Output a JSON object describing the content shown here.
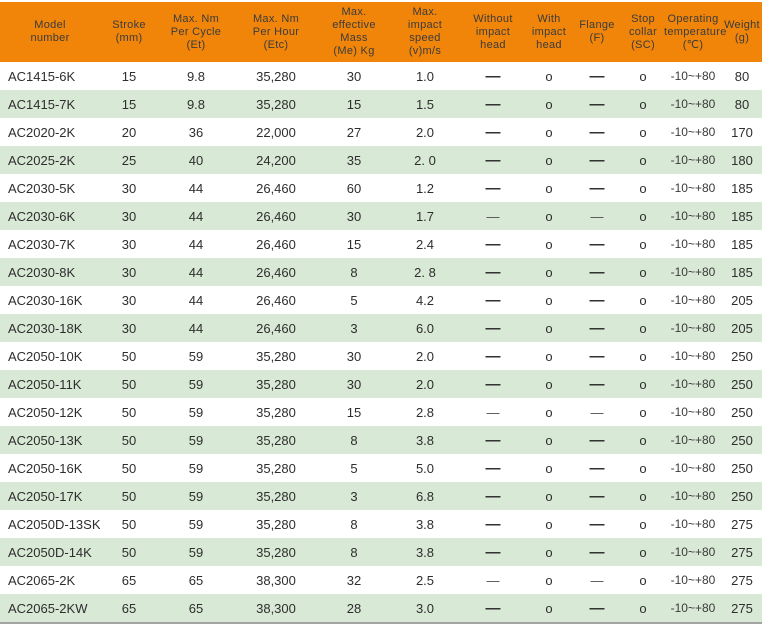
{
  "colors": {
    "header_bg": "#f0850a",
    "header_text": "#3b3b3b",
    "row_bg": "#ffffff",
    "row_alt_bg": "#d8e9d5",
    "cell_text": "#2e2e2e",
    "bottom_rule": "#a3a3a3"
  },
  "table": {
    "columns": [
      {
        "id": "model_number",
        "label": "Model\nnumber"
      },
      {
        "id": "stroke_mm",
        "label": "Stroke\n(mm)"
      },
      {
        "id": "max_nm_per_cycle",
        "label": "Max. Nm\nPer Cycle\n(Et)"
      },
      {
        "id": "max_nm_per_hour",
        "label": "Max. Nm\nPer Hour\n(Etc)"
      },
      {
        "id": "max_effective_mass",
        "label": "Max.\neffective\nMass\n(Me) Kg"
      },
      {
        "id": "max_impact_speed",
        "label": "Max.\nimpact\nspeed\n(v)m/s"
      },
      {
        "id": "without_impact_head",
        "label": "Without\nimpact\nhead"
      },
      {
        "id": "with_impact_head",
        "label": "With\nimpact\nhead"
      },
      {
        "id": "flange",
        "label": "Flange\n(F)"
      },
      {
        "id": "stop_collar",
        "label": "Stop\ncollar\n(SC)"
      },
      {
        "id": "operating_temperature",
        "label": "Operating\ntemperature\n(℃)"
      },
      {
        "id": "weight",
        "label": "Weight\n(g)"
      }
    ],
    "symbol_legend": {
      "dash": "—",
      "circle": "o"
    },
    "light_dash_row_indices": [
      5,
      12,
      18
    ]
  },
  "chart_data": {
    "type": "table",
    "title": "",
    "columns": [
      "Model number",
      "Stroke (mm)",
      "Max. Nm Per Cycle (Et)",
      "Max. Nm Per Hour (Etc)",
      "Max. effective Mass (Me) Kg",
      "Max. impact speed (v)m/s",
      "Without impact head",
      "With impact head",
      "Flange (F)",
      "Stop collar (SC)",
      "Operating temperature (℃)",
      "Weight (g)"
    ],
    "rows": [
      [
        "AC1415-6K",
        "15",
        "9.8",
        "35,280",
        "30",
        "1.0",
        "—",
        "o",
        "—",
        "o",
        "-10~+80",
        "80"
      ],
      [
        "AC1415-7K",
        "15",
        "9.8",
        "35,280",
        "15",
        "1.5",
        "—",
        "o",
        "—",
        "o",
        "-10~+80",
        "80"
      ],
      [
        "AC2020-2K",
        "20",
        "36",
        "22,000",
        "27",
        "2.0",
        "—",
        "o",
        "—",
        "o",
        "-10~+80",
        "170"
      ],
      [
        "AC2025-2K",
        "25",
        "40",
        "24,200",
        "35",
        "2. 0",
        "—",
        "o",
        "—",
        "o",
        "-10~+80",
        "180"
      ],
      [
        "AC2030-5K",
        "30",
        "44",
        "26,460",
        "60",
        "1.2",
        "—",
        "o",
        "—",
        "o",
        "-10~+80",
        "185"
      ],
      [
        "AC2030-6K",
        "30",
        "44",
        "26,460",
        "30",
        "1.7",
        "—",
        "o",
        "—",
        "o",
        "-10~+80",
        "185"
      ],
      [
        "AC2030-7K",
        "30",
        "44",
        "26,460",
        "15",
        "2.4",
        "—",
        "o",
        "—",
        "o",
        "-10~+80",
        "185"
      ],
      [
        "AC2030-8K",
        "30",
        "44",
        "26,460",
        "8",
        "2. 8",
        "—",
        "o",
        "—",
        "o",
        "-10~+80",
        "185"
      ],
      [
        "AC2030-16K",
        "30",
        "44",
        "26,460",
        "5",
        "4.2",
        "—",
        "o",
        "—",
        "o",
        "-10~+80",
        "205"
      ],
      [
        "AC2030-18K",
        "30",
        "44",
        "26,460",
        "3",
        "6.0",
        "—",
        "o",
        "—",
        "o",
        "-10~+80",
        "205"
      ],
      [
        "AC2050-10K",
        "50",
        "59",
        "35,280",
        "30",
        "2.0",
        "—",
        "o",
        "—",
        "o",
        "-10~+80",
        "250"
      ],
      [
        "AC2050-11K",
        "50",
        "59",
        "35,280",
        "30",
        "2.0",
        "—",
        "o",
        "—",
        "o",
        "-10~+80",
        "250"
      ],
      [
        "AC2050-12K",
        "50",
        "59",
        "35,280",
        "15",
        "2.8",
        "—",
        "o",
        "—",
        "o",
        "-10~+80",
        "250"
      ],
      [
        "AC2050-13K",
        "50",
        "59",
        "35,280",
        "8",
        "3.8",
        "—",
        "o",
        "—",
        "o",
        "-10~+80",
        "250"
      ],
      [
        "AC2050-16K",
        "50",
        "59",
        "35,280",
        "5",
        "5.0",
        "—",
        "o",
        "—",
        "o",
        "-10~+80",
        "250"
      ],
      [
        "AC2050-17K",
        "50",
        "59",
        "35,280",
        "3",
        "6.8",
        "—",
        "o",
        "—",
        "o",
        "-10~+80",
        "250"
      ],
      [
        "AC2050D-13SK",
        "50",
        "59",
        "35,280",
        "8",
        "3.8",
        "—",
        "o",
        "—",
        "o",
        "-10~+80",
        "275"
      ],
      [
        "AC2050D-14K",
        "50",
        "59",
        "35,280",
        "8",
        "3.8",
        "—",
        "o",
        "—",
        "o",
        "-10~+80",
        "275"
      ],
      [
        "AC2065-2K",
        "65",
        "65",
        "38,300",
        "32",
        "2.5",
        "—",
        "o",
        "—",
        "o",
        "-10~+80",
        "275"
      ],
      [
        "AC2065-2KW",
        "65",
        "65",
        "38,300",
        "28",
        "3.0",
        "—",
        "o",
        "—",
        "o",
        "-10~+80",
        "275"
      ]
    ]
  }
}
